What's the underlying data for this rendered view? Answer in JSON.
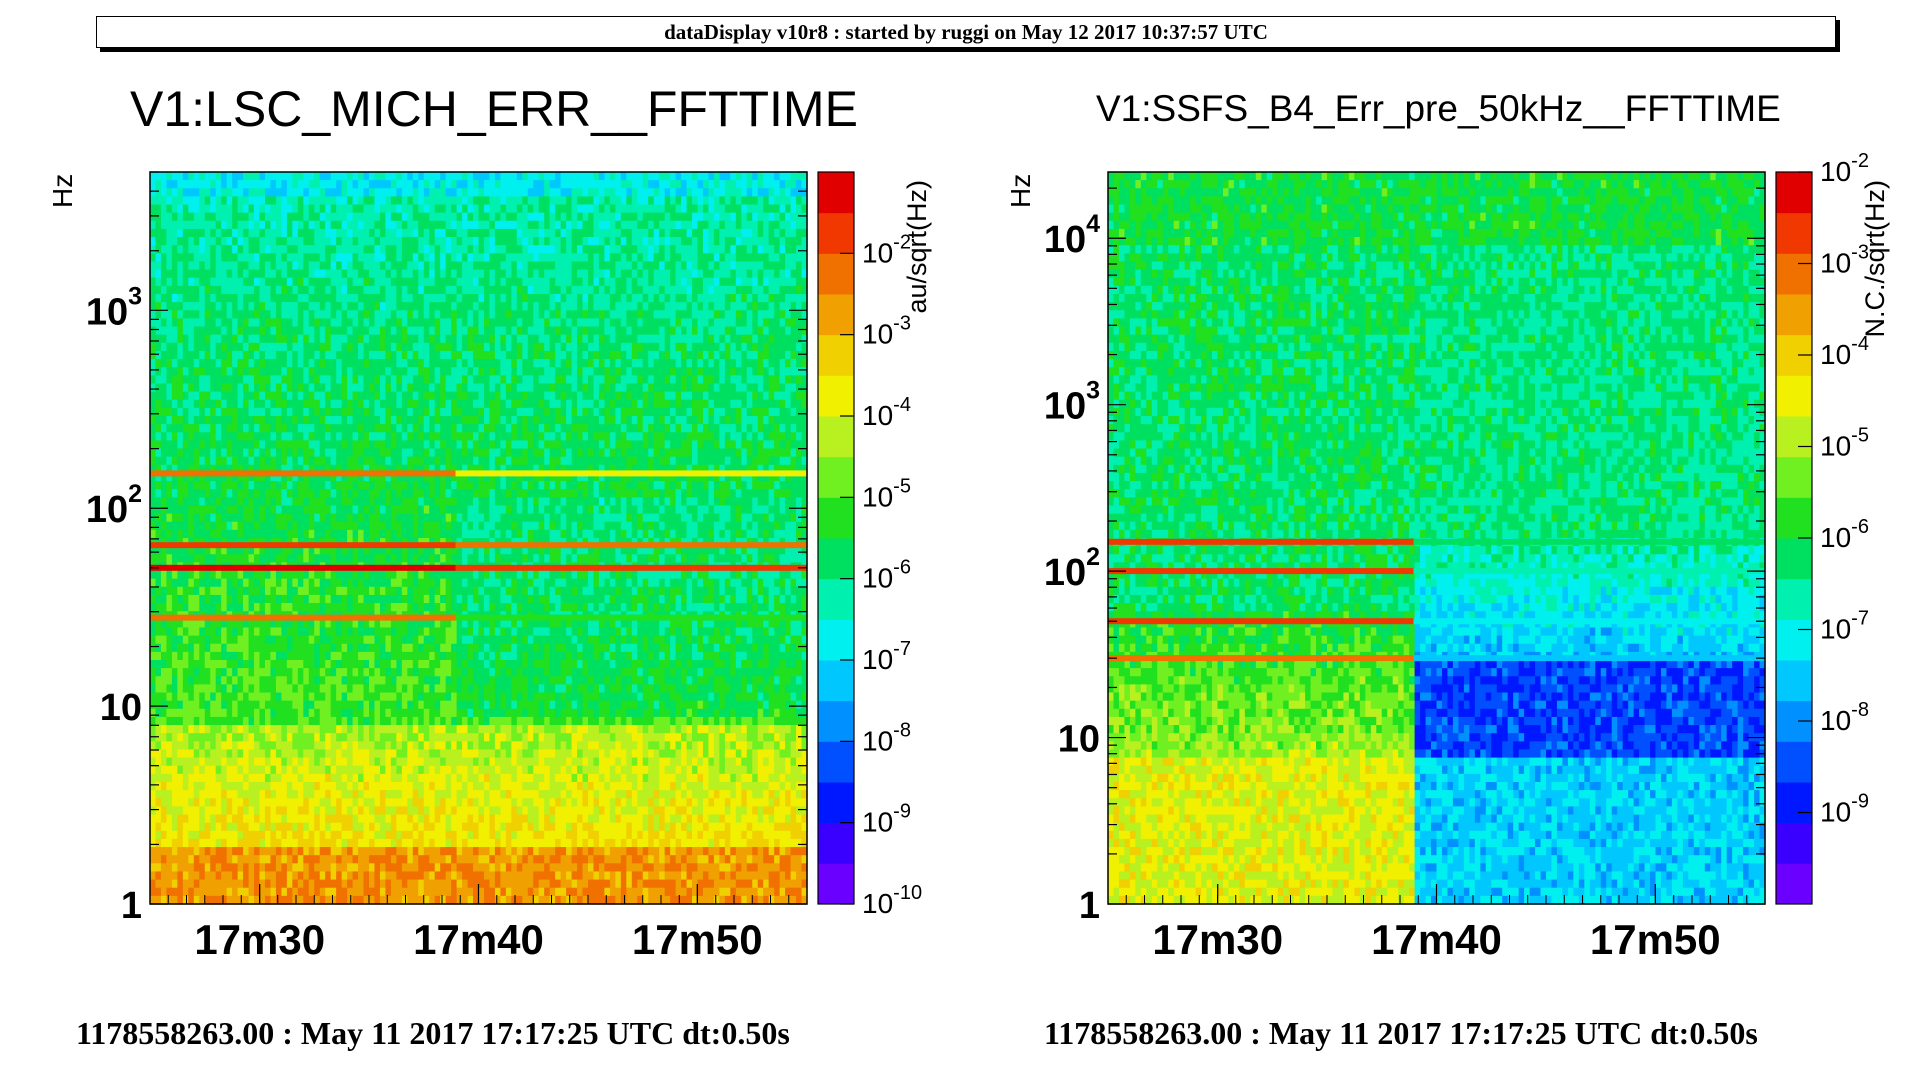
{
  "header": {
    "banner": "dataDisplay v10r8 : started by ruggi on May 12 2017 10:37:57 UTC"
  },
  "footers": [
    "1178558263.00 : May 11 2017 17:17:25 UTC dt:0.50s",
    "1178558263.00 : May 11 2017 17:17:25 UTC dt:0.50s"
  ],
  "chart_data": [
    {
      "type": "heatmap",
      "title": "V1:LSC_MICH_ERR__FFTTIME",
      "ylabel": "Hz",
      "zlabel": "au/sqrt(Hz)",
      "yscale": "log",
      "zscale": "log",
      "ylim": [
        1,
        5000
      ],
      "xticks": [
        "17m30",
        "17m40",
        "17m50"
      ],
      "yticks": [
        {
          "value": 1,
          "base": "1",
          "exp": ""
        },
        {
          "value": 10,
          "base": "10",
          "exp": ""
        },
        {
          "value": 100,
          "base": "10",
          "exp": "2"
        },
        {
          "value": 1000,
          "base": "10",
          "exp": "3"
        }
      ],
      "colorbar_ticks": [
        {
          "base": "10",
          "exp": "-10"
        },
        {
          "base": "10",
          "exp": "-9"
        },
        {
          "base": "10",
          "exp": "-8"
        },
        {
          "base": "10",
          "exp": "-7"
        },
        {
          "base": "10",
          "exp": "-6"
        },
        {
          "base": "10",
          "exp": "-5"
        },
        {
          "base": "10",
          "exp": "-4"
        },
        {
          "base": "10",
          "exp": "-3"
        },
        {
          "base": "10",
          "exp": "-2"
        }
      ],
      "zrange": [
        1e-10,
        0.1
      ],
      "transition_time": "17m37",
      "features": [
        {
          "freq_hz": 50,
          "level_before": 0.95,
          "level_after": 0.9
        },
        {
          "freq_hz": 65,
          "level_before": 0.9,
          "level_after": 0.85
        },
        {
          "freq_hz": 150,
          "level_before": 0.85,
          "level_after": 0.7
        },
        {
          "freq_hz": 28,
          "level_before": 0.85,
          "level_after": 0.55
        }
      ],
      "background_levels": {
        "low_freq": 0.82,
        "mid_freq": 0.55,
        "high_freq": 0.42
      }
    },
    {
      "type": "heatmap",
      "title": "V1:SSFS_B4_Err_pre_50kHz__FFTTIME",
      "ylabel": "Hz",
      "zlabel": "N.C./sqrt(Hz)",
      "yscale": "log",
      "zscale": "log",
      "ylim": [
        1,
        25000
      ],
      "xticks": [
        "17m30",
        "17m40",
        "17m50"
      ],
      "yticks": [
        {
          "value": 1,
          "base": "1",
          "exp": ""
        },
        {
          "value": 10,
          "base": "10",
          "exp": ""
        },
        {
          "value": 100,
          "base": "10",
          "exp": "2"
        },
        {
          "value": 1000,
          "base": "10",
          "exp": "3"
        },
        {
          "value": 10000,
          "base": "10",
          "exp": "4"
        }
      ],
      "colorbar_ticks": [
        {
          "base": "10",
          "exp": "-9"
        },
        {
          "base": "10",
          "exp": "-8"
        },
        {
          "base": "10",
          "exp": "-7"
        },
        {
          "base": "10",
          "exp": "-6"
        },
        {
          "base": "10",
          "exp": "-5"
        },
        {
          "base": "10",
          "exp": "-4"
        },
        {
          "base": "10",
          "exp": "-3"
        },
        {
          "base": "10",
          "exp": "-2"
        }
      ],
      "zrange": [
        1e-10,
        0.01
      ],
      "transition_time": "17m37",
      "features": [
        {
          "freq_hz": 30,
          "level_before": 0.88,
          "level_after": 0.3
        },
        {
          "freq_hz": 50,
          "level_before": 0.9,
          "level_after": 0.35
        },
        {
          "freq_hz": 100,
          "level_before": 0.92,
          "level_after": 0.4
        },
        {
          "freq_hz": 150,
          "level_before": 0.93,
          "level_after": 0.45
        }
      ],
      "background_levels": {
        "low_freq": 0.68,
        "mid_freq": 0.45,
        "high_freq": 0.45,
        "after_low": 0.18
      }
    }
  ]
}
